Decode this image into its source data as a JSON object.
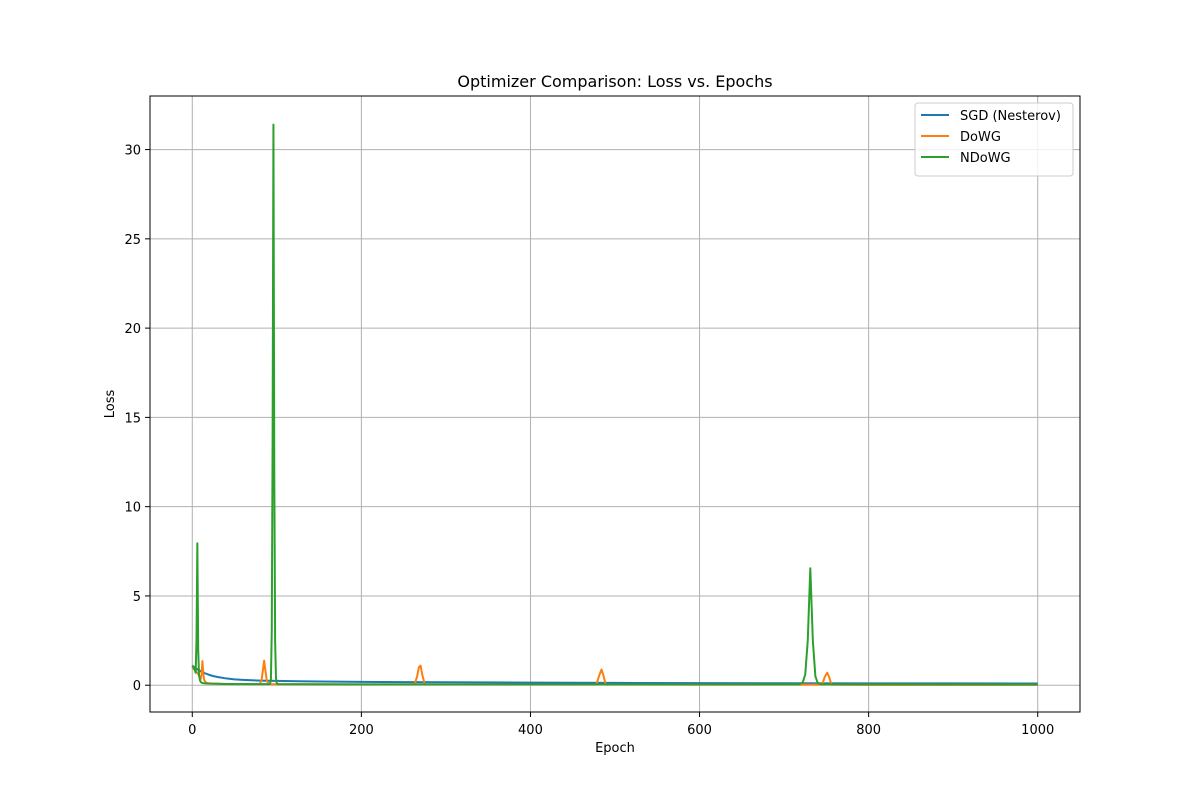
{
  "chart_data": {
    "type": "line",
    "title": "Optimizer Comparison: Loss vs. Epochs",
    "xlabel": "Epoch",
    "ylabel": "Loss",
    "xlim": [
      -50,
      1050
    ],
    "ylim": [
      -1.5,
      33
    ],
    "xticks": [
      0,
      200,
      400,
      600,
      800,
      1000
    ],
    "yticks": [
      0,
      5,
      10,
      15,
      20,
      25,
      30
    ],
    "grid": true,
    "legend_position": "top-right",
    "series": [
      {
        "name": "SGD (Nesterov)",
        "color": "#1f77b4",
        "points": [
          [
            0,
            1.1
          ],
          [
            5,
            0.92
          ],
          [
            10,
            0.78
          ],
          [
            15,
            0.67
          ],
          [
            20,
            0.58
          ],
          [
            25,
            0.51
          ],
          [
            30,
            0.46
          ],
          [
            40,
            0.38
          ],
          [
            50,
            0.33
          ],
          [
            60,
            0.3
          ],
          [
            70,
            0.28
          ],
          [
            80,
            0.26
          ],
          [
            100,
            0.24
          ],
          [
            125,
            0.22
          ],
          [
            150,
            0.21
          ],
          [
            200,
            0.19
          ],
          [
            250,
            0.175
          ],
          [
            300,
            0.165
          ],
          [
            400,
            0.145
          ],
          [
            500,
            0.13
          ],
          [
            600,
            0.12
          ],
          [
            700,
            0.11
          ],
          [
            800,
            0.105
          ],
          [
            900,
            0.1
          ],
          [
            1000,
            0.095
          ]
        ]
      },
      {
        "name": "DoWG",
        "color": "#ff7f0e",
        "points": [
          [
            0,
            1.0
          ],
          [
            3,
            0.85
          ],
          [
            5,
            0.75
          ],
          [
            8,
            0.55
          ],
          [
            10,
            0.35
          ],
          [
            11,
            0.6
          ],
          [
            12,
            1.35
          ],
          [
            13,
            0.7
          ],
          [
            14,
            0.3
          ],
          [
            16,
            0.15
          ],
          [
            20,
            0.1
          ],
          [
            40,
            0.07
          ],
          [
            80,
            0.06
          ],
          [
            82,
            0.3
          ],
          [
            84,
            1.0
          ],
          [
            85,
            1.38
          ],
          [
            86,
            1.0
          ],
          [
            88,
            0.3
          ],
          [
            90,
            0.06
          ],
          [
            150,
            0.05
          ],
          [
            263,
            0.05
          ],
          [
            266,
            0.5
          ],
          [
            268,
            1.0
          ],
          [
            270,
            1.1
          ],
          [
            272,
            0.6
          ],
          [
            275,
            0.05
          ],
          [
            400,
            0.04
          ],
          [
            478,
            0.04
          ],
          [
            481,
            0.5
          ],
          [
            484,
            0.88
          ],
          [
            486,
            0.6
          ],
          [
            489,
            0.04
          ],
          [
            600,
            0.03
          ],
          [
            745,
            0.03
          ],
          [
            748,
            0.45
          ],
          [
            751,
            0.7
          ],
          [
            753,
            0.5
          ],
          [
            756,
            0.03
          ],
          [
            800,
            0.02
          ],
          [
            1000,
            0.02
          ]
        ]
      },
      {
        "name": "NDoWG",
        "color": "#2ca02c",
        "points": [
          [
            0,
            1.1
          ],
          [
            1,
            1.05
          ],
          [
            2,
            0.95
          ],
          [
            3,
            0.85
          ],
          [
            4,
            0.7
          ],
          [
            5,
            2.5
          ],
          [
            6,
            7.95
          ],
          [
            7,
            2.0
          ],
          [
            8,
            0.55
          ],
          [
            9,
            0.3
          ],
          [
            10,
            0.18
          ],
          [
            12,
            0.12
          ],
          [
            20,
            0.09
          ],
          [
            40,
            0.07
          ],
          [
            90,
            0.06
          ],
          [
            92,
            0.09
          ],
          [
            93,
            0.3
          ],
          [
            94,
            3.0
          ],
          [
            95,
            13.5
          ],
          [
            96,
            31.4
          ],
          [
            97,
            12.0
          ],
          [
            98,
            2.5
          ],
          [
            99,
            0.4
          ],
          [
            100,
            0.1
          ],
          [
            101,
            0.06
          ],
          [
            200,
            0.05
          ],
          [
            400,
            0.05
          ],
          [
            600,
            0.05
          ],
          [
            718,
            0.05
          ],
          [
            722,
            0.15
          ],
          [
            725,
            0.6
          ],
          [
            728,
            2.5
          ],
          [
            731,
            6.55
          ],
          [
            734,
            2.5
          ],
          [
            737,
            0.5
          ],
          [
            740,
            0.1
          ],
          [
            745,
            0.05
          ],
          [
            800,
            0.05
          ],
          [
            1000,
            0.04
          ]
        ]
      }
    ]
  }
}
